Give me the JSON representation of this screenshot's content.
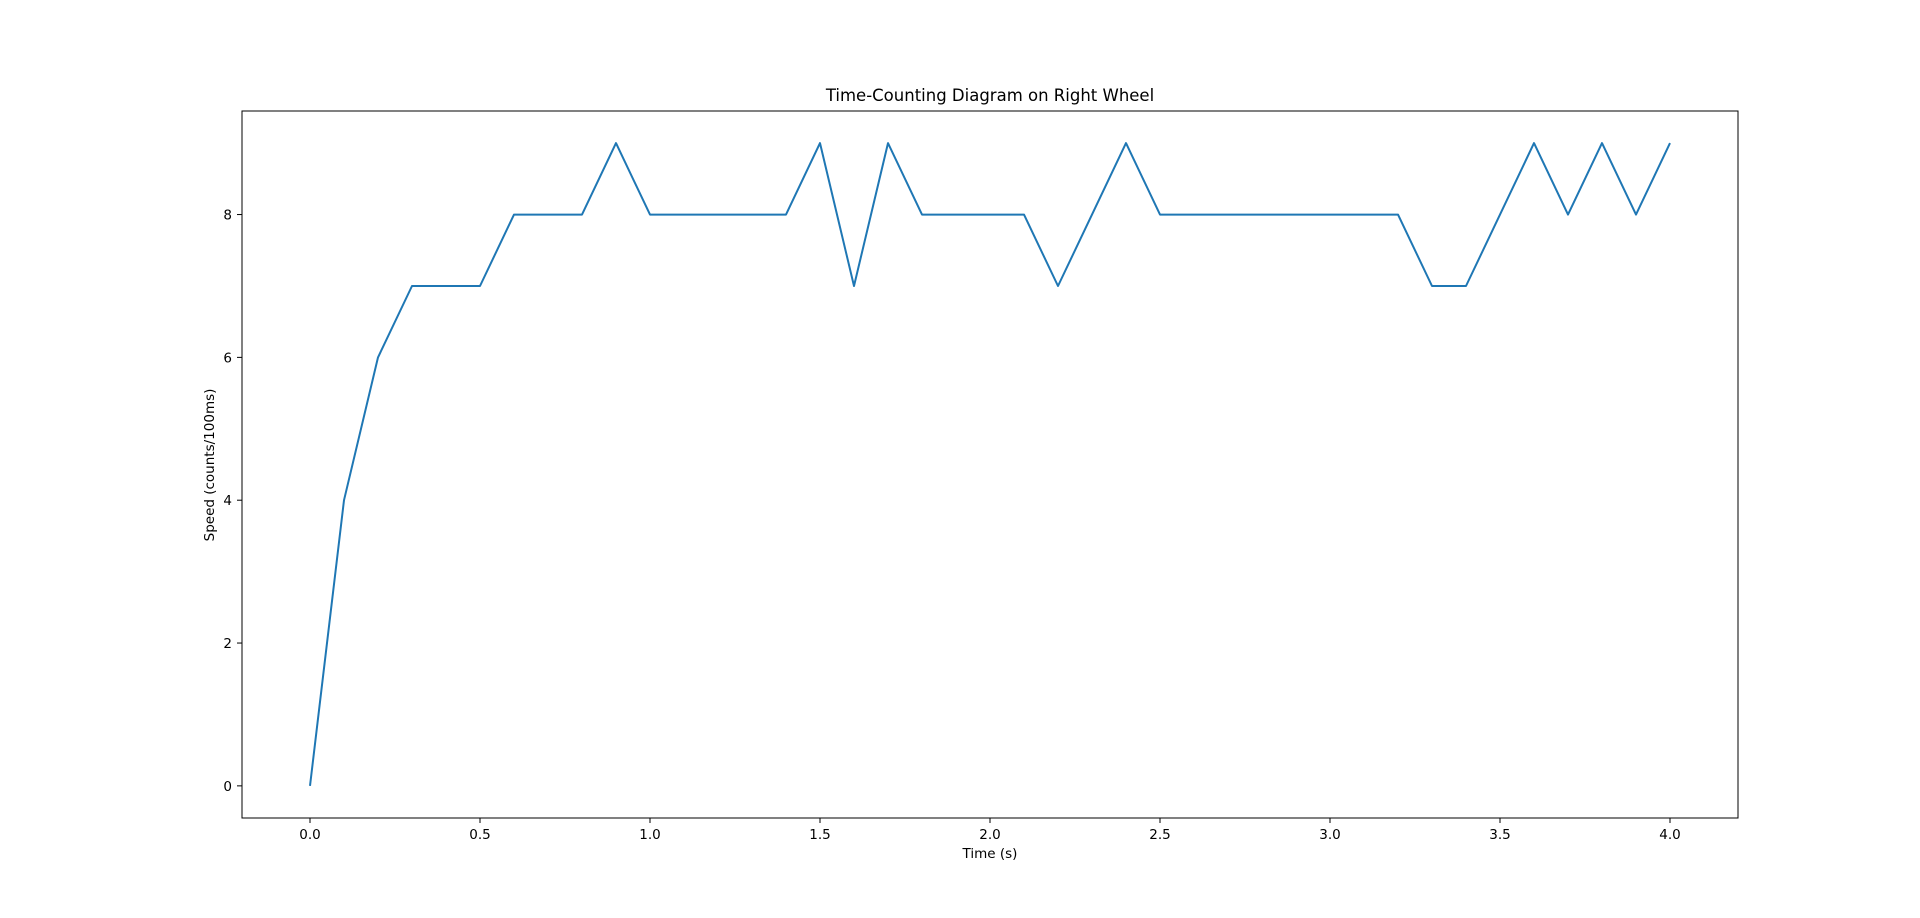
{
  "chart_data": {
    "type": "line",
    "title": "Time-Counting Diagram on Right Wheel",
    "xlabel": "Time (s)",
    "ylabel": "Speed (counts/100ms)",
    "xlim": [
      -0.2,
      4.2
    ],
    "ylim": [
      -0.45,
      9.45
    ],
    "x_ticks": [
      0.0,
      0.5,
      1.0,
      1.5,
      2.0,
      2.5,
      3.0,
      3.5,
      4.0
    ],
    "x_tick_labels": [
      "0.0",
      "0.5",
      "1.0",
      "1.5",
      "2.0",
      "2.5",
      "3.0",
      "3.5",
      "4.0"
    ],
    "y_ticks": [
      0,
      2,
      4,
      6,
      8
    ],
    "y_tick_labels": [
      "0",
      "2",
      "4",
      "6",
      "8"
    ],
    "grid": false,
    "line_color": "#1f77b4",
    "series": [
      {
        "x": [
          0.0,
          0.1,
          0.2,
          0.3,
          0.4,
          0.5,
          0.6,
          0.7,
          0.8,
          0.9,
          1.0,
          1.1,
          1.2,
          1.3,
          1.4,
          1.5,
          1.6,
          1.7,
          1.8,
          1.9,
          2.0,
          2.1,
          2.2,
          2.3,
          2.4,
          2.5,
          2.6,
          2.7,
          2.8,
          2.9,
          3.0,
          3.1,
          3.2,
          3.3,
          3.4,
          3.5,
          3.6,
          3.7,
          3.8,
          3.9,
          4.0
        ],
        "values": [
          0,
          4,
          6,
          7,
          7,
          7,
          8,
          8,
          8,
          9,
          8,
          8,
          8,
          8,
          8,
          9,
          7,
          9,
          8,
          8,
          8,
          8,
          7,
          8,
          9,
          8,
          8,
          8,
          8,
          8,
          8,
          8,
          8,
          7,
          7,
          8,
          9,
          8,
          9,
          8,
          9
        ]
      }
    ]
  }
}
